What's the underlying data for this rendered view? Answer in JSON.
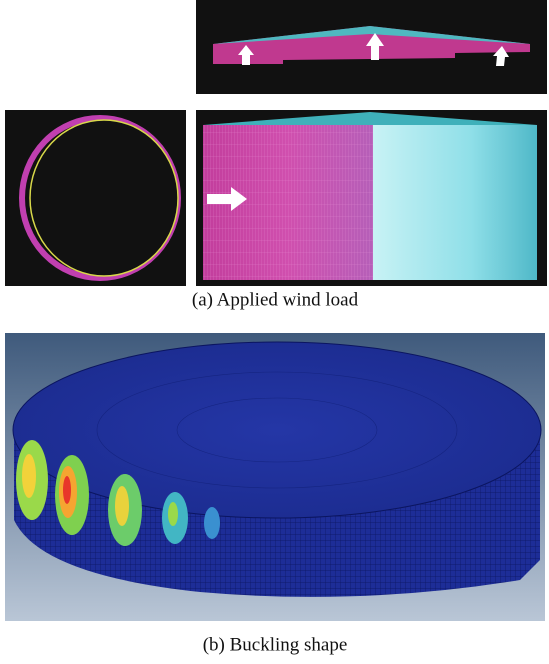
{
  "figure": {
    "panels": [
      {
        "caption": "(a) Applied wind load"
      },
      {
        "caption": "(b) Buckling shape"
      }
    ]
  }
}
